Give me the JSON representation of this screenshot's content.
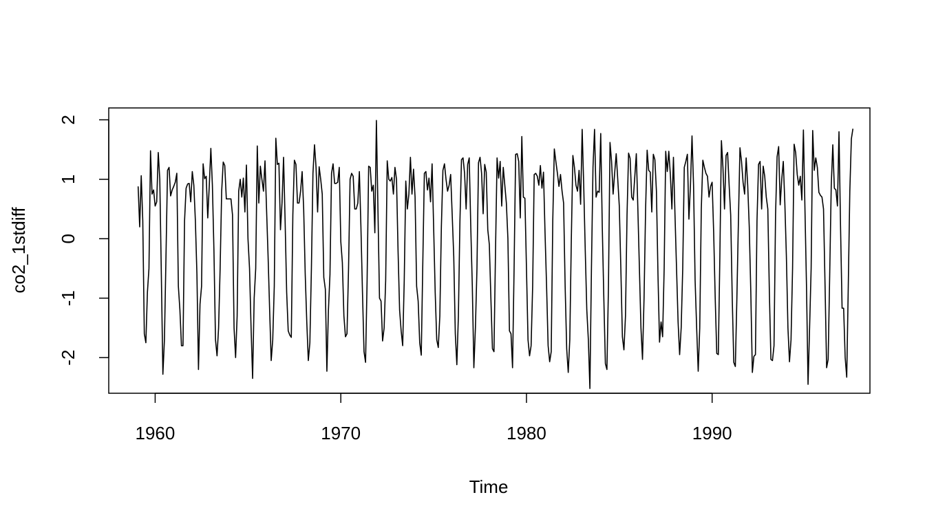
{
  "chart_data": {
    "type": "line",
    "title": "",
    "xlabel": "Time",
    "ylabel": "co2_1stdiff",
    "xlim": [
      1957.5,
      1998.5
    ],
    "ylim": [
      -2.6,
      2.2
    ],
    "xticks": [
      1960,
      1970,
      1980,
      1990
    ],
    "yticks": [
      -2,
      -1,
      0,
      1,
      2
    ],
    "xtick_labels": [
      "1960",
      "1970",
      "1980",
      "1990"
    ],
    "ytick_labels": [
      "-2",
      "-1",
      "0",
      "1",
      "2"
    ],
    "grid": false,
    "line_color": "#000000",
    "series": [
      {
        "x_start": 1959.083,
        "x_step": 0.0833333,
        "values": [
          0.88,
          0.2,
          1.06,
          0.3,
          -1.6,
          -1.75,
          -0.9,
          -0.5,
          1.48,
          0.75,
          0.82,
          0.55,
          0.62,
          1.45,
          1.0,
          -0.6,
          -2.28,
          -1.7,
          -0.3,
          1.15,
          1.2,
          0.72,
          0.82,
          0.88,
          0.95,
          1.1,
          -0.8,
          -1.2,
          -1.8,
          -1.8,
          0.3,
          0.85,
          0.92,
          0.93,
          0.62,
          1.13,
          0.9,
          0.3,
          -0.6,
          -2.2,
          -1.1,
          -0.8,
          1.26,
          1.01,
          1.05,
          0.35,
          0.9,
          1.52,
          0.9,
          -0.2,
          -1.7,
          -1.97,
          -1.5,
          -0.5,
          0.8,
          1.29,
          1.23,
          0.67,
          0.67,
          0.67,
          0.67,
          0.4,
          -1.5,
          -2.0,
          -1.3,
          0.8,
          1.0,
          0.7,
          1.02,
          0.45,
          1.24,
          0.0,
          -0.5,
          -1.5,
          -2.35,
          -1.0,
          -0.5,
          1.56,
          0.6,
          1.22,
          1.0,
          0.8,
          1.31,
          0.5,
          -0.3,
          -1.2,
          -2.05,
          -1.7,
          -0.8,
          1.69,
          1.25,
          1.27,
          0.15,
          0.6,
          1.37,
          0.3,
          -0.9,
          -1.55,
          -1.62,
          -1.66,
          0.4,
          1.32,
          1.25,
          0.6,
          0.6,
          0.8,
          1.13,
          0.5,
          -0.6,
          -1.4,
          -2.05,
          -1.75,
          -0.5,
          1.1,
          1.58,
          1.2,
          0.45,
          1.21,
          1.0,
          0.75,
          -0.65,
          -0.85,
          -2.23,
          -1.2,
          -0.6,
          1.1,
          1.26,
          0.93,
          0.93,
          0.95,
          1.2,
          -0.05,
          -0.4,
          -1.3,
          -1.65,
          -1.6,
          -0.5,
          1.0,
          1.1,
          1.05,
          0.5,
          0.5,
          0.6,
          1.13,
          0.2,
          -0.9,
          -1.9,
          -2.08,
          -0.7,
          1.22,
          1.2,
          0.8,
          0.9,
          0.1,
          1.99,
          0.5,
          -1.0,
          -1.05,
          -1.72,
          -1.5,
          -0.7,
          1.31,
          1.0,
          0.97,
          1.03,
          0.75,
          1.2,
          1.0,
          -0.2,
          -1.2,
          -1.55,
          -1.8,
          -0.7,
          0.97,
          0.5,
          0.75,
          1.37,
          0.75,
          1.17,
          0.7,
          -0.8,
          -1.05,
          -1.75,
          -1.96,
          -0.4,
          1.1,
          1.13,
          0.82,
          1.02,
          0.62,
          1.26,
          0.2,
          -0.9,
          -1.7,
          -1.83,
          -1.3,
          0.2,
          1.15,
          1.26,
          1.0,
          0.8,
          0.9,
          1.08,
          0.4,
          -0.3,
          -1.6,
          -2.12,
          -1.3,
          0.3,
          1.33,
          1.36,
          1.1,
          0.5,
          1.25,
          1.36,
          0.2,
          -0.8,
          -2.17,
          -1.5,
          -0.5,
          1.28,
          1.37,
          1.1,
          0.42,
          1.25,
          1.12,
          0.15,
          -0.1,
          -1.0,
          -1.85,
          -1.9,
          -0.2,
          1.36,
          1.02,
          1.3,
          0.55,
          1.2,
          0.9,
          0.6,
          0.0,
          -1.55,
          -1.6,
          -2.17,
          -0.5,
          1.42,
          1.43,
          1.3,
          0.35,
          1.72,
          0.7,
          0.68,
          -0.5,
          -1.7,
          -1.97,
          -1.8,
          -0.8,
          1.08,
          1.1,
          1.05,
          0.9,
          1.23,
          0.85,
          1.12,
          0.1,
          -0.8,
          -1.8,
          -2.07,
          -1.9,
          0.3,
          1.51,
          1.3,
          1.1,
          0.88,
          1.08,
          0.8,
          0.6,
          -0.8,
          -1.85,
          -2.25,
          -1.7,
          0.0,
          1.4,
          1.2,
          0.9,
          0.8,
          1.15,
          0.58,
          1.84,
          0.9,
          -0.2,
          -1.2,
          -1.7,
          -2.52,
          -0.5,
          1.2,
          1.84,
          0.7,
          0.8,
          0.78,
          1.77,
          0.2,
          -1.0,
          -2.1,
          -2.2,
          -0.8,
          1.62,
          1.3,
          0.75,
          1.1,
          1.43,
          1.0,
          0.55,
          -0.5,
          -1.65,
          -1.87,
          -1.3,
          0.4,
          1.44,
          1.35,
          0.7,
          0.65,
          1.04,
          1.43,
          0.5,
          -0.5,
          -1.5,
          -2.03,
          -1.0,
          0.5,
          1.49,
          1.15,
          1.12,
          0.45,
          1.42,
          1.33,
          0.8,
          -0.6,
          -1.74,
          -1.4,
          -1.65,
          -0.5,
          1.47,
          1.13,
          1.47,
          1.08,
          0.5,
          1.37,
          0.4,
          -0.5,
          -1.4,
          -1.95,
          -1.5,
          -0.5,
          1.2,
          1.3,
          1.42,
          0.33,
          0.9,
          1.73,
          0.9,
          -0.7,
          -1.5,
          -2.23,
          -1.5,
          0.5,
          1.32,
          1.2,
          1.1,
          1.05,
          0.7,
          0.88,
          0.95,
          0.1,
          -1.0,
          -1.93,
          -1.95,
          -0.3,
          1.65,
          1.2,
          0.5,
          1.4,
          1.45,
          0.9,
          0.4,
          -1.0,
          -2.08,
          -2.15,
          -1.0,
          0.3,
          1.53,
          1.3,
          0.95,
          0.75,
          1.36,
          0.9,
          0.2,
          -0.9,
          -2.25,
          -1.98,
          -1.95,
          0.3,
          1.25,
          1.3,
          0.5,
          1.22,
          1.05,
          0.7,
          0.5,
          -0.9,
          -2.03,
          -2.05,
          -1.8,
          0.4,
          1.38,
          1.55,
          0.57,
          1.0,
          1.3,
          0.6,
          -0.3,
          -1.5,
          -2.07,
          -1.7,
          -0.5,
          1.59,
          1.45,
          1.08,
          0.9,
          1.05,
          0.65,
          1.83,
          0.5,
          -0.8,
          -2.45,
          -1.5,
          -0.5,
          1.82,
          1.15,
          1.36,
          1.2,
          0.78,
          0.73,
          0.7,
          0.5,
          -0.8,
          -2.17,
          -2.03,
          -0.6,
          0.9,
          1.58,
          0.85,
          0.82,
          0.55,
          1.8,
          0.2,
          -1.17,
          -1.17,
          -2.0,
          -2.33,
          -0.8,
          0.8,
          1.68,
          1.85
        ]
      }
    ]
  }
}
